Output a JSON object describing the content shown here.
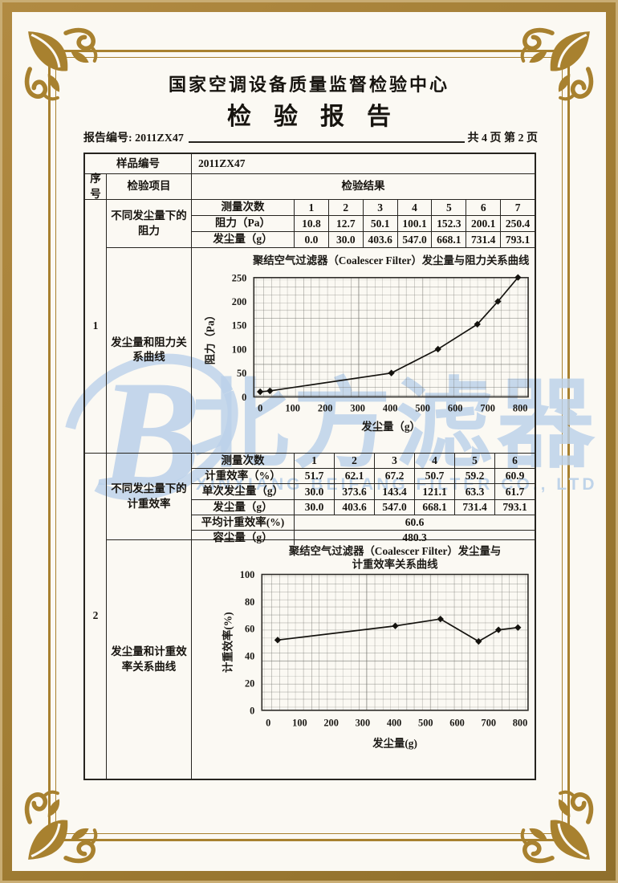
{
  "header": {
    "center_name": "国家空调设备质量监督检验中心",
    "report_title": "检验报告",
    "report_no": "报告编号: 2011ZX47",
    "pagination": "共 4 页 第 2 页"
  },
  "sample": {
    "label": "样品编号",
    "value": "2011ZX47"
  },
  "columns": {
    "seq": "序号",
    "item": "检验项目",
    "result": "检验结果"
  },
  "section1": {
    "seq": "1",
    "item_data": "不同发尘量下的阻力",
    "item_chart": "发尘量和阻力关系曲线",
    "meas_label": "测量次数",
    "meas": [
      "1",
      "2",
      "3",
      "4",
      "5",
      "6",
      "7"
    ],
    "row1_label": "阻力（Pa）",
    "row1": [
      "10.8",
      "12.7",
      "50.1",
      "100.1",
      "152.3",
      "200.1",
      "250.4"
    ],
    "row2_label": "发尘量（g）",
    "row2": [
      "0.0",
      "30.0",
      "403.6",
      "547.0",
      "668.1",
      "731.4",
      "793.1"
    ]
  },
  "section2": {
    "seq": "2",
    "item_data": "不同发尘量下的计重效率",
    "item_chart": "发尘量和计重效率关系曲线",
    "meas_label": "测量次数",
    "meas": [
      "1",
      "2",
      "3",
      "4",
      "5",
      "6"
    ],
    "row1_label": "计重效率（%）",
    "row1": [
      "51.7",
      "62.1",
      "67.2",
      "50.7",
      "59.2",
      "60.9"
    ],
    "row2_label": "单次发尘量（g）",
    "row2": [
      "30.0",
      "373.6",
      "143.4",
      "121.1",
      "63.3",
      "61.7"
    ],
    "row3_label": "发尘量（g）",
    "row3": [
      "30.0",
      "403.6",
      "547.0",
      "668.1",
      "731.4",
      "793.1"
    ],
    "avg_label": "平均计重效率(%)",
    "avg_value": "60.6",
    "cap_label": "容尘量（g）",
    "cap_value": "480.3"
  },
  "watermark": {
    "logo_letter": "B",
    "cn_text": "北方滤器",
    "en_text": "XINXIANG BEIFANG FILTER CO., LTD",
    "color": "#bbd1ea"
  },
  "colors": {
    "frame_gold": "#a8812f",
    "ink": "#17140f",
    "paper": "#fbf9f3"
  },
  "chart_data": [
    {
      "type": "line",
      "title": "聚结空气过滤器（Coalescer Filter）发尘量与阻力关系曲线",
      "x": [
        0,
        30,
        403.6,
        547.0,
        668.1,
        731.4,
        793.1
      ],
      "y": [
        10.8,
        12.7,
        50.1,
        100.1,
        152.3,
        200.1,
        250.4
      ],
      "xlabel": "发尘量（g）",
      "ylabel": "阻力（Pa）",
      "xlim": [
        0,
        800
      ],
      "ylim": [
        0,
        250
      ],
      "xticks": [
        0,
        100,
        200,
        300,
        400,
        500,
        600,
        700,
        800
      ],
      "yticks": [
        0,
        50,
        100,
        150,
        200,
        250
      ],
      "grid": "fine-graph-paper",
      "legend": "none",
      "marker": "diamond"
    },
    {
      "type": "line",
      "title": "聚结空气过滤器（Coalescer Filter）发尘量与",
      "title2": "计重效率关系曲线",
      "x": [
        30,
        403.6,
        547.0,
        668.1,
        731.4,
        793.1
      ],
      "y": [
        51.7,
        62.1,
        67.2,
        50.7,
        59.2,
        60.9
      ],
      "xlabel": "发尘量(g)",
      "ylabel": "计重效率(%)",
      "xlim": [
        0,
        800
      ],
      "ylim": [
        0,
        100
      ],
      "xticks": [
        0,
        100,
        200,
        300,
        400,
        500,
        600,
        700,
        800
      ],
      "yticks": [
        0,
        20,
        40,
        60,
        80,
        100
      ],
      "grid": "fine-graph-paper",
      "legend": "none",
      "marker": "diamond"
    }
  ]
}
